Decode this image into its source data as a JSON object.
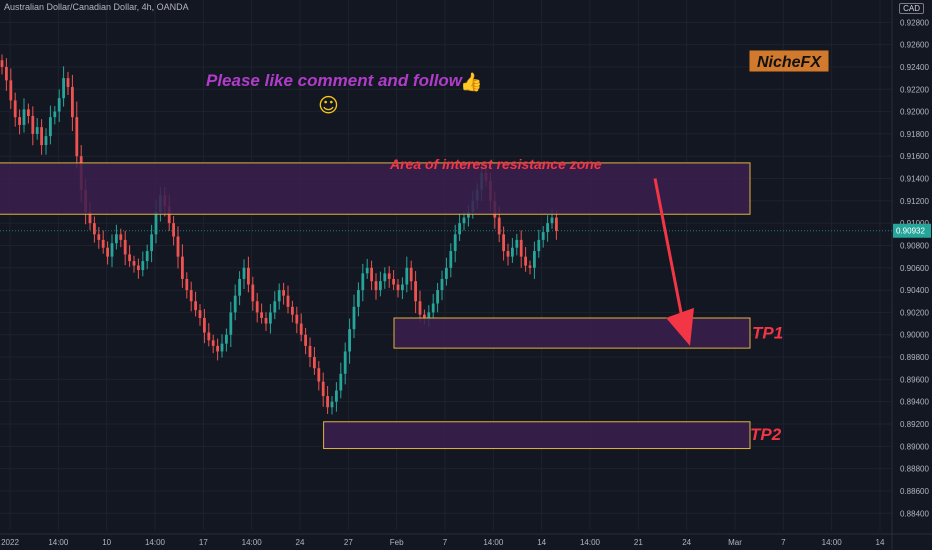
{
  "header": {
    "title": "Australian Dollar/Canadian Dollar, 4h, OANDA",
    "currency": "CAD"
  },
  "colors": {
    "background": "#131722",
    "grid": "#1e222d",
    "up": "#26a69a",
    "down": "#ef5350",
    "zone_fill": "#3b1f4d",
    "zone_border": "#e0b340",
    "annotation_red": "#f23645",
    "like_text": "#b03cc9",
    "emoji": "#f5c518",
    "brand_bg": "#d17a2e",
    "price_tag": "#26a69a"
  },
  "chart_data": {
    "type": "candlestick",
    "symbol": "AUDCAD",
    "timeframe": "4h",
    "source": "OANDA",
    "y_ticks": [
      "0.92800",
      "0.92600",
      "0.92400",
      "0.92200",
      "0.92000",
      "0.91800",
      "0.91600",
      "0.91400",
      "0.91200",
      "0.91000",
      "0.90800",
      "0.90600",
      "0.90400",
      "0.90200",
      "0.90000",
      "0.89800",
      "0.89600",
      "0.89400",
      "0.89200",
      "0.89000",
      "0.88800",
      "0.88600",
      "0.88400"
    ],
    "x_ticks": [
      "2022",
      "14:00",
      "10",
      "14:00",
      "17",
      "14:00",
      "24",
      "27",
      "Feb",
      "7",
      "14:00",
      "14",
      "14:00",
      "21",
      "24",
      "Mar",
      "7",
      "14:00",
      "14"
    ],
    "ylim": [
      0.8825,
      0.93
    ],
    "current_price": "0.90932",
    "current_price_label": "0.90932",
    "price_series": [
      0.924,
      0.9228,
      0.921,
      0.9195,
      0.9188,
      0.9202,
      0.9196,
      0.918,
      0.9186,
      0.917,
      0.9178,
      0.9195,
      0.92,
      0.9212,
      0.923,
      0.9222,
      0.9195,
      0.916,
      0.913,
      0.911,
      0.91,
      0.909,
      0.9085,
      0.9078,
      0.907,
      0.9082,
      0.909,
      0.9085,
      0.9072,
      0.9066,
      0.9062,
      0.9058,
      0.9066,
      0.9075,
      0.909,
      0.911,
      0.9125,
      0.9115,
      0.91,
      0.9088,
      0.907,
      0.905,
      0.904,
      0.903,
      0.9022,
      0.9015,
      0.9002,
      0.8995,
      0.899,
      0.8985,
      0.8992,
      0.9,
      0.902,
      0.9035,
      0.905,
      0.906,
      0.9045,
      0.903,
      0.902,
      0.9015,
      0.901,
      0.902,
      0.903,
      0.904,
      0.9035,
      0.9025,
      0.9018,
      0.901,
      0.9,
      0.899,
      0.898,
      0.897,
      0.8958,
      0.8945,
      0.8935,
      0.894,
      0.895,
      0.8965,
      0.8985,
      0.9005,
      0.9025,
      0.904,
      0.9055,
      0.906,
      0.9048,
      0.904,
      0.9048,
      0.9055,
      0.905,
      0.9045,
      0.904,
      0.9045,
      0.906,
      0.9048,
      0.903,
      0.9018,
      0.9015,
      0.902,
      0.9028,
      0.904,
      0.905,
      0.906,
      0.9075,
      0.909,
      0.91,
      0.9105,
      0.911,
      0.912,
      0.913,
      0.9145,
      0.9138,
      0.912,
      0.9105,
      0.909,
      0.9075,
      0.907,
      0.9078,
      0.9085,
      0.907,
      0.9062,
      0.906,
      0.9075,
      0.9085,
      0.9092,
      0.91,
      0.9105,
      0.9093
    ],
    "zones": [
      {
        "name": "resistance",
        "top": 0.9154,
        "bottom": 0.9108,
        "from_index": 0,
        "to_index": 170
      },
      {
        "name": "tp1",
        "top": 0.9015,
        "bottom": 0.8988,
        "from_index": 90,
        "to_index": 170
      },
      {
        "name": "tp2",
        "top": 0.8922,
        "bottom": 0.8898,
        "from_index": 74,
        "to_index": 170
      }
    ],
    "arrow": {
      "from_price": 0.914,
      "to_price": 0.899
    }
  },
  "annotations": {
    "like": "Please like comment and follow",
    "like_emoji": "👍",
    "smile_emoji": "☺",
    "zone_label": "Area of interest resistance zone",
    "tp1": "TP1",
    "tp2": "TP2",
    "brand": "NicheFX"
  }
}
